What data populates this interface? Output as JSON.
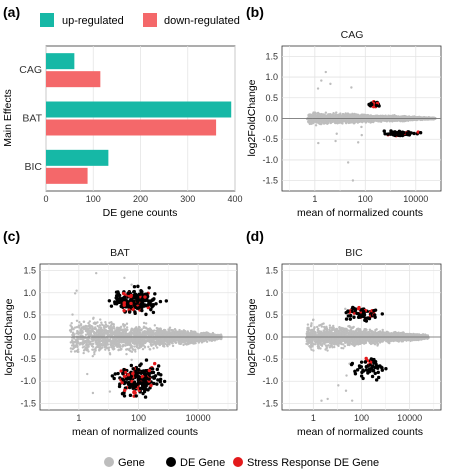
{
  "figure": {
    "panel_labels": [
      "(a)",
      "(b)",
      "(c)",
      "(d)"
    ],
    "bottom_legend": [
      {
        "label": "Gene",
        "color": "#bdbdbd"
      },
      {
        "label": "DE Gene",
        "color": "#000000"
      },
      {
        "label": "Stress Response DE Gene",
        "color": "#e31a1c"
      }
    ]
  },
  "chart_data": [
    {
      "panel": "(a)",
      "type": "bar",
      "orientation": "horizontal",
      "categories": [
        "CAG",
        "BAT",
        "BIC"
      ],
      "series": [
        {
          "name": "up-regulated",
          "color": "#16b8a6",
          "values": [
            60,
            392,
            132
          ]
        },
        {
          "name": "down-regulated",
          "color": "#f4686a",
          "values": [
            115,
            360,
            88
          ]
        }
      ],
      "xlabel": "DE gene counts",
      "ylabel": "Main Effects",
      "xlim": [
        0,
        400
      ],
      "xticks": [
        "0",
        "100",
        "200",
        "300",
        "400"
      ],
      "grid": true,
      "legend_position": "top"
    },
    {
      "panel": "(b)",
      "type": "scatter",
      "title": "CAG",
      "xlabel": "mean of normalized counts",
      "ylabel": "log2FoldChange",
      "x_scale": "log",
      "xlim": [
        0.05,
        100000
      ],
      "ylim": [
        -1.75,
        1.75
      ],
      "xticks": [
        "1",
        "100",
        "10000"
      ],
      "yticks": [
        "-1.5",
        "-1.0",
        "-0.5",
        "0.0",
        "0.5",
        "1.0",
        "1.5"
      ],
      "de_clusters": [
        {
          "x_range": [
            80,
            600
          ],
          "y_range": [
            0.25,
            0.45
          ],
          "count": 30,
          "red_fraction": 0.25
        },
        {
          "x_range": [
            150,
            40000
          ],
          "y_range": [
            -0.45,
            -0.28
          ],
          "count": 65,
          "red_fraction": 0.2
        }
      ],
      "grid": true
    },
    {
      "panel": "(c)",
      "type": "scatter",
      "title": "BAT",
      "xlabel": "mean of normalized counts",
      "ylabel": "log2FoldChange",
      "x_scale": "log",
      "xlim": [
        0.05,
        200000
      ],
      "ylim": [
        -1.65,
        1.65
      ],
      "xticks": [
        "1",
        "100",
        "10000"
      ],
      "yticks": [
        "-1.5",
        "-1.0",
        "-0.5",
        "0.0",
        "0.5",
        "1.0",
        "1.5"
      ],
      "de_clusters": [
        {
          "x_range": [
            3,
            2000
          ],
          "y_range": [
            0.45,
            1.2
          ],
          "count": 230,
          "red_fraction": 0.15
        },
        {
          "x_range": [
            5,
            2000
          ],
          "y_range": [
            -1.45,
            -0.45
          ],
          "count": 230,
          "red_fraction": 0.18
        }
      ],
      "grid": true
    },
    {
      "panel": "(d)",
      "type": "scatter",
      "title": "BIC",
      "xlabel": "mean of normalized counts",
      "ylabel": "log2FoldChange",
      "x_scale": "log",
      "xlim": [
        0.05,
        200000
      ],
      "ylim": [
        -1.65,
        1.65
      ],
      "xticks": [
        "1",
        "100",
        "10000"
      ],
      "yticks": [
        "-1.5",
        "-1.0",
        "-0.5",
        "0.0",
        "0.5",
        "1.0",
        "1.5"
      ],
      "de_clusters": [
        {
          "x_range": [
            5,
            3000
          ],
          "y_range": [
            0.3,
            0.75
          ],
          "count": 65,
          "red_fraction": 0.2
        },
        {
          "x_range": [
            10,
            4000
          ],
          "y_range": [
            -1.1,
            -0.3
          ],
          "count": 60,
          "red_fraction": 0.1
        }
      ],
      "grid": true
    }
  ]
}
